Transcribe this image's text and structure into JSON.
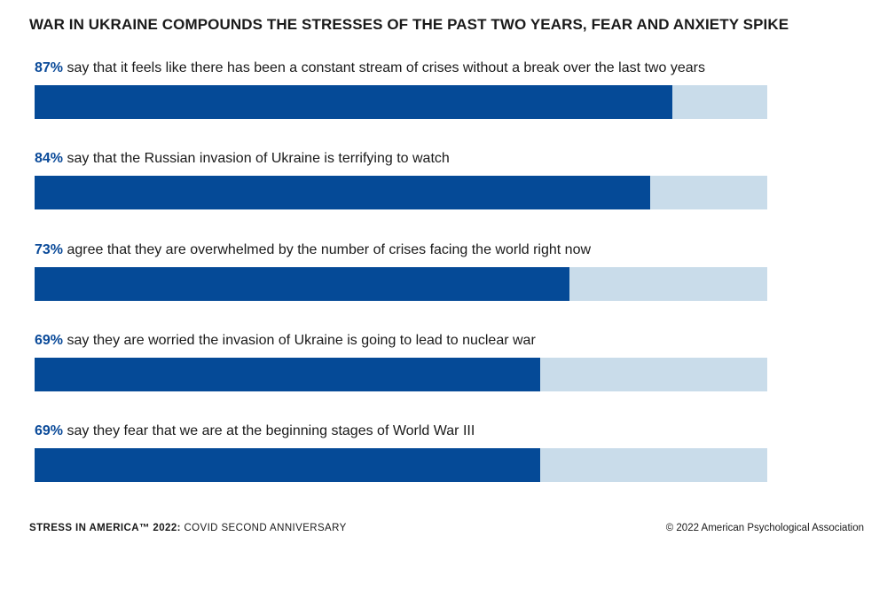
{
  "header": {
    "title": "WAR IN UKRAINE COMPOUNDS THE STRESSES OF THE PAST TWO YEARS, FEAR AND ANXIETY SPIKE"
  },
  "chart_data": {
    "type": "bar",
    "orientation": "horizontal",
    "title": "WAR IN UKRAINE COMPOUNDS THE STRESSES OF THE PAST TWO YEARS, FEAR AND ANXIETY SPIKE",
    "xlim": [
      0,
      100
    ],
    "unit": "%",
    "grid": false,
    "colors": {
      "fill": "#054a97",
      "track": "#c9dcea",
      "percent_text": "#0a4a99"
    },
    "bars": [
      {
        "value": 87,
        "value_label": "87%",
        "text": "say that it feels like there has been a constant stream of crises without a break over the last two years"
      },
      {
        "value": 84,
        "value_label": "84%",
        "text": "say that the Russian invasion of Ukraine is terrifying to watch"
      },
      {
        "value": 73,
        "value_label": "73%",
        "text": "agree that they are overwhelmed by the number of crises facing the world right now"
      },
      {
        "value": 69,
        "value_label": "69%",
        "text": "say they are worried the invasion of Ukraine is going to lead to nuclear war"
      },
      {
        "value": 69,
        "value_label": "69%",
        "text": "say they fear that we are at the beginning stages of World War III"
      }
    ]
  },
  "footer": {
    "source_bold": "STRESS IN AMERICA™ 2022:",
    "source_rest": "COVID SECOND ANNIVERSARY",
    "copyright": "© 2022 American Psychological Association"
  }
}
